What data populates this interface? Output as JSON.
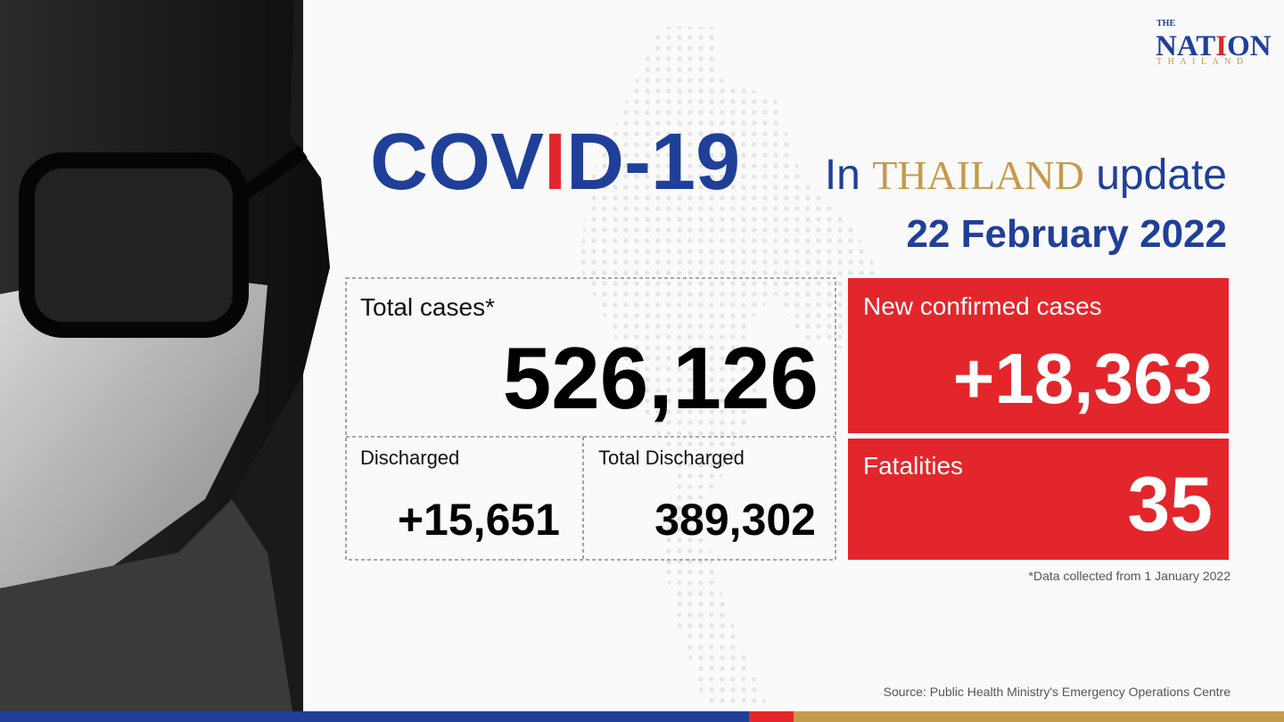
{
  "logo": {
    "top": "THE",
    "main": [
      "NAT",
      "I",
      "ON"
    ],
    "bottom": "THAILAND"
  },
  "title": {
    "main": [
      "COV",
      "I",
      "D-19"
    ],
    "prefix": "In",
    "country": "THAILAND",
    "suffix": "update"
  },
  "date": "22 February 2022",
  "total_cases": {
    "label": "Total cases*",
    "value": "526,126"
  },
  "discharged": {
    "label": "Discharged",
    "value": "+15,651"
  },
  "total_discharged": {
    "label": "Total Discharged",
    "value": "389,302"
  },
  "new_cases": {
    "label": "New confirmed cases",
    "value": "+18,363"
  },
  "fatalities": {
    "label": "Fatalities",
    "value": "35"
  },
  "footnote": "*Data collected from 1 January 2022",
  "source": "Source: Public Health Ministry's Emergency Operations Centre"
}
